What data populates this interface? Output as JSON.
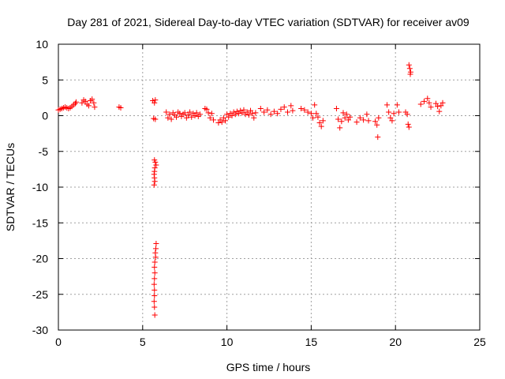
{
  "chart_data": {
    "type": "scatter",
    "title": "Day 281 of 2021, Sidereal Day-to-day VTEC variation (SDTVAR) for receiver av09",
    "xlabel": "GPS time / hours",
    "ylabel": "SDTVAR / TECUs",
    "xlim": [
      0,
      25
    ],
    "ylim": [
      -30,
      10
    ],
    "xticks": [
      0,
      5,
      10,
      15,
      20,
      25
    ],
    "yticks": [
      10,
      5,
      0,
      -5,
      -10,
      -15,
      -20,
      -25,
      -30
    ],
    "grid": true,
    "marker": "+",
    "color": "#ff0000",
    "series": [
      {
        "name": "SDTVAR",
        "points": [
          [
            0.0,
            0.8
          ],
          [
            0.1,
            0.9
          ],
          [
            0.2,
            1.0
          ],
          [
            0.3,
            1.1
          ],
          [
            0.4,
            1.2
          ],
          [
            0.5,
            1.1
          ],
          [
            0.6,
            1.0
          ],
          [
            0.7,
            1.1
          ],
          [
            0.8,
            1.3
          ],
          [
            0.9,
            1.5
          ],
          [
            1.0,
            1.7
          ],
          [
            1.05,
            1.9
          ],
          [
            1.4,
            1.8
          ],
          [
            1.5,
            2.2
          ],
          [
            1.6,
            2.0
          ],
          [
            1.7,
            1.6
          ],
          [
            1.8,
            1.4
          ],
          [
            1.9,
            2.1
          ],
          [
            2.0,
            2.3
          ],
          [
            2.1,
            1.8
          ],
          [
            2.15,
            1.2
          ],
          [
            3.6,
            1.2
          ],
          [
            3.7,
            1.1
          ],
          [
            5.6,
            2.1
          ],
          [
            5.7,
            1.8
          ],
          [
            5.75,
            2.2
          ],
          [
            5.65,
            -0.4
          ],
          [
            5.75,
            -0.5
          ],
          [
            5.7,
            -6.2
          ],
          [
            5.75,
            -6.5
          ],
          [
            5.8,
            -6.9
          ],
          [
            5.72,
            -7.3
          ],
          [
            5.7,
            -7.8
          ],
          [
            5.68,
            -8.2
          ],
          [
            5.7,
            -8.7
          ],
          [
            5.72,
            -9.2
          ],
          [
            5.68,
            -9.7
          ],
          [
            5.8,
            -17.9
          ],
          [
            5.78,
            -18.6
          ],
          [
            5.75,
            -19.2
          ],
          [
            5.77,
            -19.8
          ],
          [
            5.72,
            -20.5
          ],
          [
            5.7,
            -21.2
          ],
          [
            5.72,
            -22.0
          ],
          [
            5.7,
            -22.8
          ],
          [
            5.68,
            -23.6
          ],
          [
            5.7,
            -24.4
          ],
          [
            5.7,
            -25.2
          ],
          [
            5.68,
            -26.0
          ],
          [
            5.7,
            -26.8
          ],
          [
            5.72,
            -27.9
          ],
          [
            6.4,
            0.5
          ],
          [
            6.5,
            -0.3
          ],
          [
            6.6,
            0.2
          ],
          [
            6.7,
            -0.5
          ],
          [
            6.8,
            0.4
          ],
          [
            6.9,
            0.1
          ],
          [
            7.0,
            -0.2
          ],
          [
            7.1,
            0.5
          ],
          [
            7.2,
            0.3
          ],
          [
            7.3,
            -0.1
          ],
          [
            7.4,
            0.2
          ],
          [
            7.5,
            0.4
          ],
          [
            7.6,
            -0.3
          ],
          [
            7.7,
            0.1
          ],
          [
            7.8,
            0.5
          ],
          [
            7.9,
            -0.2
          ],
          [
            8.0,
            0.3
          ],
          [
            8.1,
            0.0
          ],
          [
            8.2,
            0.4
          ],
          [
            8.3,
            -0.1
          ],
          [
            8.4,
            0.2
          ],
          [
            8.7,
            1.0
          ],
          [
            8.8,
            0.9
          ],
          [
            8.9,
            0.4
          ],
          [
            9.0,
            -0.3
          ],
          [
            9.1,
            0.3
          ],
          [
            9.2,
            -0.6
          ],
          [
            9.5,
            -1.0
          ],
          [
            9.6,
            -0.6
          ],
          [
            9.7,
            -0.9
          ],
          [
            9.8,
            -0.3
          ],
          [
            9.9,
            -0.7
          ],
          [
            10.0,
            0.2
          ],
          [
            10.1,
            -0.2
          ],
          [
            10.2,
            0.3
          ],
          [
            10.3,
            0.0
          ],
          [
            10.4,
            0.5
          ],
          [
            10.5,
            0.2
          ],
          [
            10.6,
            0.6
          ],
          [
            10.7,
            0.3
          ],
          [
            10.8,
            0.7
          ],
          [
            10.9,
            0.4
          ],
          [
            11.0,
            0.8
          ],
          [
            11.1,
            0.2
          ],
          [
            11.2,
            0.5
          ],
          [
            11.3,
            0.1
          ],
          [
            11.4,
            0.7
          ],
          [
            11.5,
            0.3
          ],
          [
            11.6,
            -0.3
          ],
          [
            11.7,
            0.4
          ],
          [
            12.0,
            1.0
          ],
          [
            12.2,
            0.5
          ],
          [
            12.4,
            0.8
          ],
          [
            12.6,
            0.2
          ],
          [
            12.8,
            0.6
          ],
          [
            13.0,
            0.3
          ],
          [
            13.2,
            0.9
          ],
          [
            13.4,
            1.2
          ],
          [
            13.6,
            0.5
          ],
          [
            13.8,
            1.4
          ],
          [
            13.9,
            0.7
          ],
          [
            14.4,
            1.0
          ],
          [
            14.6,
            0.8
          ],
          [
            14.8,
            0.5
          ],
          [
            15.0,
            0.3
          ],
          [
            15.1,
            -0.3
          ],
          [
            15.2,
            1.5
          ],
          [
            15.3,
            0.3
          ],
          [
            15.4,
            -0.2
          ],
          [
            15.5,
            -1.0
          ],
          [
            15.6,
            -1.5
          ],
          [
            15.7,
            -0.7
          ],
          [
            16.5,
            1.0
          ],
          [
            16.6,
            -0.5
          ],
          [
            16.7,
            -1.7
          ],
          [
            16.8,
            -0.8
          ],
          [
            16.9,
            0.4
          ],
          [
            17.0,
            -0.3
          ],
          [
            17.1,
            0.2
          ],
          [
            17.2,
            -0.6
          ],
          [
            17.3,
            -0.2
          ],
          [
            17.7,
            -0.9
          ],
          [
            17.9,
            -0.3
          ],
          [
            18.1,
            -0.6
          ],
          [
            18.3,
            0.2
          ],
          [
            18.4,
            -0.7
          ],
          [
            18.8,
            -0.8
          ],
          [
            18.9,
            -1.3
          ],
          [
            19.0,
            -0.3
          ],
          [
            18.95,
            -3.0
          ],
          [
            19.5,
            1.5
          ],
          [
            19.6,
            0.5
          ],
          [
            19.7,
            -0.3
          ],
          [
            19.8,
            -0.7
          ],
          [
            19.9,
            0.3
          ],
          [
            20.1,
            1.5
          ],
          [
            20.2,
            0.5
          ],
          [
            20.6,
            0.5
          ],
          [
            20.7,
            0.2
          ],
          [
            20.75,
            -1.2
          ],
          [
            20.8,
            -1.6
          ],
          [
            20.8,
            7.1
          ],
          [
            20.85,
            6.6
          ],
          [
            20.9,
            6.1
          ],
          [
            20.88,
            5.8
          ],
          [
            21.5,
            1.6
          ],
          [
            21.7,
            2.0
          ],
          [
            21.9,
            2.4
          ],
          [
            22.0,
            1.8
          ],
          [
            22.1,
            1.2
          ],
          [
            22.4,
            1.7
          ],
          [
            22.5,
            1.3
          ],
          [
            22.6,
            0.6
          ],
          [
            22.7,
            1.4
          ],
          [
            22.8,
            1.8
          ]
        ]
      }
    ]
  }
}
